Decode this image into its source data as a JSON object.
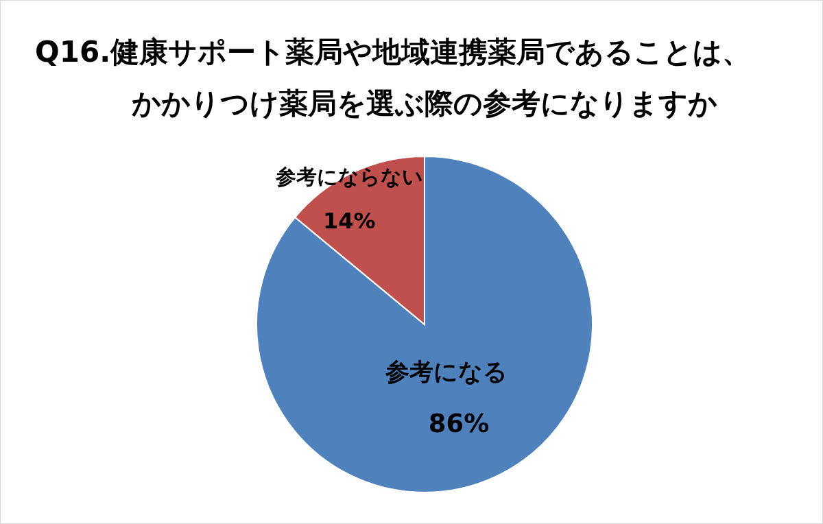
{
  "chart_data": {
    "type": "pie",
    "title": "Q16.健康サポート薬局や地域連携薬局であることは、かかりつけ薬局を選ぶ際の参考になりますか",
    "categories": [
      "参考になる",
      "参考にならない"
    ],
    "values": [
      86,
      14
    ],
    "colors": [
      "#4f81bd",
      "#c0504d"
    ],
    "value_labels": [
      "86%",
      "14%"
    ],
    "legend": false
  }
}
